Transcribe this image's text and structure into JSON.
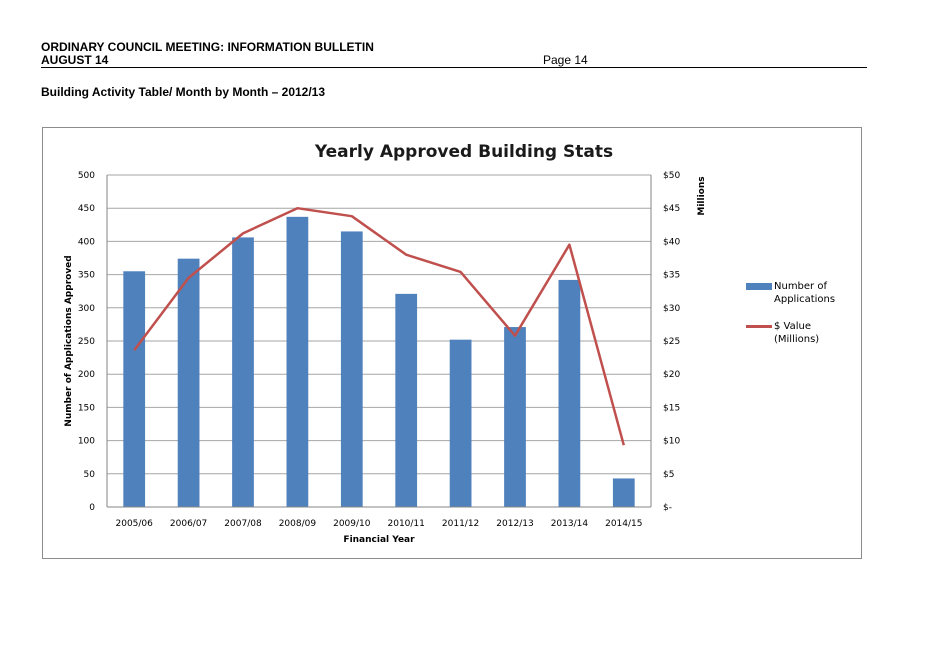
{
  "header": {
    "line1": "ORDINARY COUNCIL MEETING: INFORMATION BULLETIN",
    "line2": "AUGUST 14",
    "page": "Page 14"
  },
  "subtitle": "Building Activity Table/ Month by Month – 2012/13",
  "colors": {
    "bars": "#4f81bd",
    "line": "#c0504d",
    "grid": "#a6a6a6"
  },
  "chart_data": {
    "type": "bar",
    "title": "Yearly Approved Building Stats",
    "xlabel": "Financial Year",
    "ylabel": "Number of Applications Approved",
    "y2label": "Millions",
    "categories": [
      "2005/06",
      "2006/07",
      "2007/08",
      "2008/09",
      "2009/10",
      "2010/11",
      "2011/12",
      "2012/13",
      "2013/14",
      "2014/15"
    ],
    "ylim": [
      0,
      500
    ],
    "yticks": [
      "0",
      "50",
      "100",
      "150",
      "200",
      "250",
      "300",
      "350",
      "400",
      "450",
      "500"
    ],
    "y2lim": [
      0,
      50
    ],
    "y2ticks": [
      "$-",
      "$5",
      "$10",
      "$15",
      "$20",
      "$25",
      "$30",
      "$35",
      "$40",
      "$45",
      "$50"
    ],
    "grid": true,
    "legend_position": "right",
    "series": [
      {
        "name": "Number of Applications",
        "type": "bar",
        "axis": "left",
        "values": [
          355,
          374,
          406,
          437,
          415,
          321,
          252,
          271,
          342,
          43
        ]
      },
      {
        "name": "$ Value (Millions)",
        "type": "line",
        "axis": "right",
        "values": [
          23.6,
          34.5,
          41.2,
          45.0,
          43.8,
          38.0,
          35.4,
          25.8,
          39.5,
          9.3
        ]
      }
    ]
  }
}
